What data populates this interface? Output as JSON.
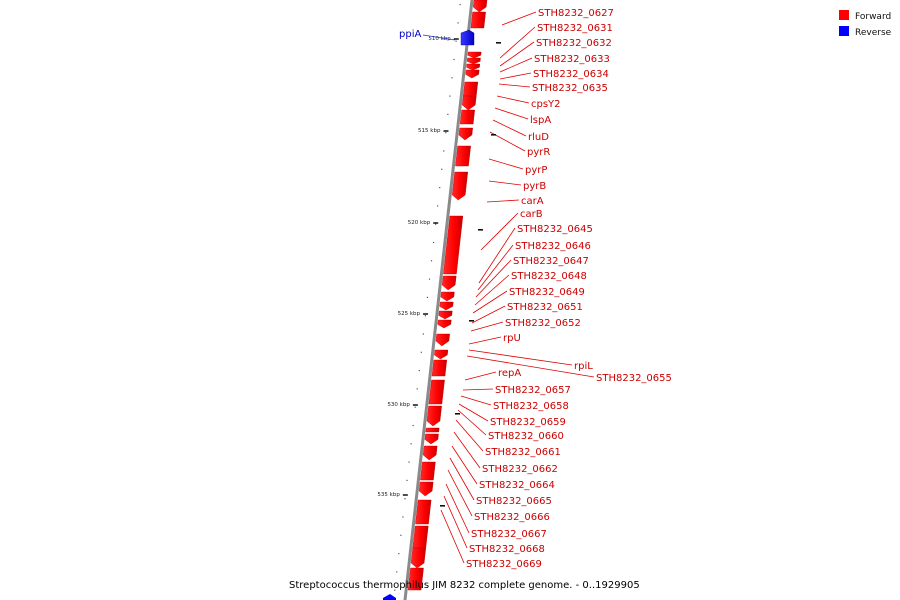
{
  "caption": "Streptococcus thermophilus JIM 8232 complete genome. - 0..1929905",
  "legend": [
    {
      "label": "Forward",
      "color": "#ff0000"
    },
    {
      "label": "Reverse",
      "color": "#0000ff"
    }
  ],
  "colors": {
    "forward": "#ff0000",
    "reverse": "#0000ff",
    "backbone": "#888888",
    "label_line_forward": "#e00000",
    "label_line_reverse": "#2030c0"
  },
  "ticks": [
    {
      "label": "510 kbp",
      "pos_kbp": 510
    },
    {
      "label": "515 kbp",
      "pos_kbp": 515
    },
    {
      "label": "520 kbp",
      "pos_kbp": 520
    },
    {
      "label": "525 kbp",
      "pos_kbp": 525
    },
    {
      "label": "530 kbp",
      "pos_kbp": 530
    },
    {
      "label": "535 kbp",
      "pos_kbp": 535
    }
  ],
  "genes": [
    {
      "name": "STH8232_0627",
      "strand": "forward"
    },
    {
      "name": "STH8232_0631",
      "strand": "forward"
    },
    {
      "name": "STH8232_0632",
      "strand": "forward"
    },
    {
      "name": "STH8232_0633",
      "strand": "forward"
    },
    {
      "name": "STH8232_0634",
      "strand": "forward"
    },
    {
      "name": "STH8232_0635",
      "strand": "forward"
    },
    {
      "name": "cpsY2",
      "strand": "forward"
    },
    {
      "name": "lspA",
      "strand": "forward"
    },
    {
      "name": "rluD",
      "strand": "forward"
    },
    {
      "name": "pyrR",
      "strand": "forward"
    },
    {
      "name": "pyrP",
      "strand": "forward"
    },
    {
      "name": "pyrB",
      "strand": "forward"
    },
    {
      "name": "carA",
      "strand": "forward"
    },
    {
      "name": "carB",
      "strand": "forward"
    },
    {
      "name": "STH8232_0645",
      "strand": "forward"
    },
    {
      "name": "STH8232_0646",
      "strand": "forward"
    },
    {
      "name": "STH8232_0647",
      "strand": "forward"
    },
    {
      "name": "STH8232_0648",
      "strand": "forward"
    },
    {
      "name": "STH8232_0649",
      "strand": "forward"
    },
    {
      "name": "STH8232_0651",
      "strand": "forward"
    },
    {
      "name": "STH8232_0652",
      "strand": "forward"
    },
    {
      "name": "rpU",
      "strand": "forward"
    },
    {
      "name": "rpiL",
      "strand": "forward"
    },
    {
      "name": "STH8232_0655",
      "strand": "forward"
    },
    {
      "name": "repA",
      "strand": "forward"
    },
    {
      "name": "STH8232_0657",
      "strand": "forward"
    },
    {
      "name": "STH8232_0658",
      "strand": "forward"
    },
    {
      "name": "STH8232_0659",
      "strand": "forward"
    },
    {
      "name": "STH8232_0660",
      "strand": "forward"
    },
    {
      "name": "STH8232_0661",
      "strand": "forward"
    },
    {
      "name": "STH8232_0662",
      "strand": "forward"
    },
    {
      "name": "STH8232_0664",
      "strand": "forward"
    },
    {
      "name": "STH8232_0665",
      "strand": "forward"
    },
    {
      "name": "STH8232_0666",
      "strand": "forward"
    },
    {
      "name": "STH8232_0667",
      "strand": "forward"
    },
    {
      "name": "STH8232_0668",
      "strand": "forward"
    },
    {
      "name": "STH8232_0669",
      "strand": "forward"
    },
    {
      "name": "ppiA",
      "strand": "reverse"
    }
  ]
}
